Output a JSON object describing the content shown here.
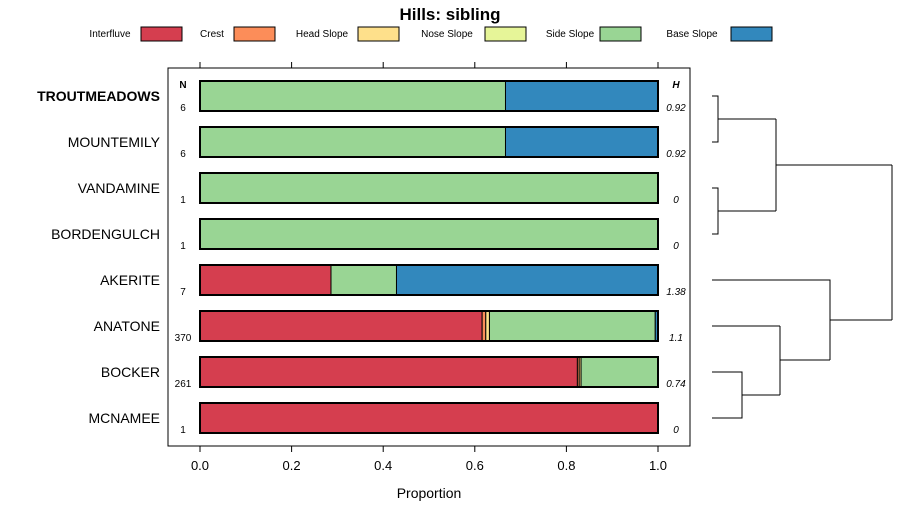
{
  "chart_data": {
    "type": "bar",
    "orientation": "horizontal",
    "stacked": true,
    "title": "Hills: sibling",
    "xlabel": "Proportion",
    "ylabel": "",
    "xlim": [
      0,
      1
    ],
    "xticks": [
      "0.0",
      "0.2",
      "0.4",
      "0.6",
      "0.8",
      "1.0"
    ],
    "n_header": "N",
    "h_header": "H",
    "legend_position": "top",
    "series": [
      {
        "name": "Interfluve",
        "color": "#D53E4F"
      },
      {
        "name": "Crest",
        "color": "#FC8D59"
      },
      {
        "name": "Head Slope",
        "color": "#FEE08B"
      },
      {
        "name": "Nose Slope",
        "color": "#E6F598"
      },
      {
        "name": "Side Slope",
        "color": "#99D594"
      },
      {
        "name": "Base Slope",
        "color": "#3288BD"
      }
    ],
    "categories": [
      {
        "name": "TROUTMEADOWS",
        "bold": true,
        "n": "6",
        "h": "0.92",
        "values": [
          0,
          0,
          0,
          0,
          0.667,
          0.333
        ]
      },
      {
        "name": "MOUNTEMILY",
        "bold": false,
        "n": "6",
        "h": "0.92",
        "values": [
          0,
          0,
          0,
          0,
          0.667,
          0.333
        ]
      },
      {
        "name": "VANDAMINE",
        "bold": false,
        "n": "1",
        "h": "0",
        "values": [
          0,
          0,
          0,
          0,
          1,
          0
        ]
      },
      {
        "name": "BORDENGULCH",
        "bold": false,
        "n": "1",
        "h": "0",
        "values": [
          0,
          0,
          0,
          0,
          1,
          0
        ]
      },
      {
        "name": "AKERITE",
        "bold": false,
        "n": "7",
        "h": "1.38",
        "values": [
          0.286,
          0,
          0,
          0,
          0.143,
          0.571
        ]
      },
      {
        "name": "ANATONE",
        "bold": false,
        "n": "370",
        "h": "1.1",
        "values": [
          0.616,
          0.008,
          0.008,
          0,
          0.362,
          0.006
        ]
      },
      {
        "name": "BOCKER",
        "bold": false,
        "n": "261",
        "h": "0.74",
        "values": [
          0.824,
          0.004,
          0.004,
          0,
          0.168,
          0
        ]
      },
      {
        "name": "MCNAMEE",
        "bold": false,
        "n": "1",
        "h": "0",
        "values": [
          1,
          0,
          0,
          0,
          0,
          0
        ]
      }
    ],
    "dendrogram": {
      "type": "hierarchical clustering",
      "merges": [
        {
          "a": "TROUTMEADOWS",
          "b": "MOUNTEMILY",
          "height": 0
        },
        {
          "a": "VANDAMINE",
          "b": "BORDENGULCH",
          "height": 0
        },
        {
          "a": "BOCKER",
          "b": "MCNAMEE",
          "height": 0.17
        },
        {
          "a": "ANATONE",
          "b": "BOCKER+MCNAMEE",
          "height": 0.35
        },
        {
          "a": "AKERITE",
          "b": "ANATONE+BOCKER+MCNAMEE",
          "height": 0.6
        },
        {
          "a": "TROUTMEADOWS+MOUNTEMILY",
          "b": "VANDAMINE+BORDENGULCH",
          "height": 0.34
        },
        {
          "a": "group1",
          "b": "group2",
          "height": 0.93
        }
      ]
    }
  }
}
